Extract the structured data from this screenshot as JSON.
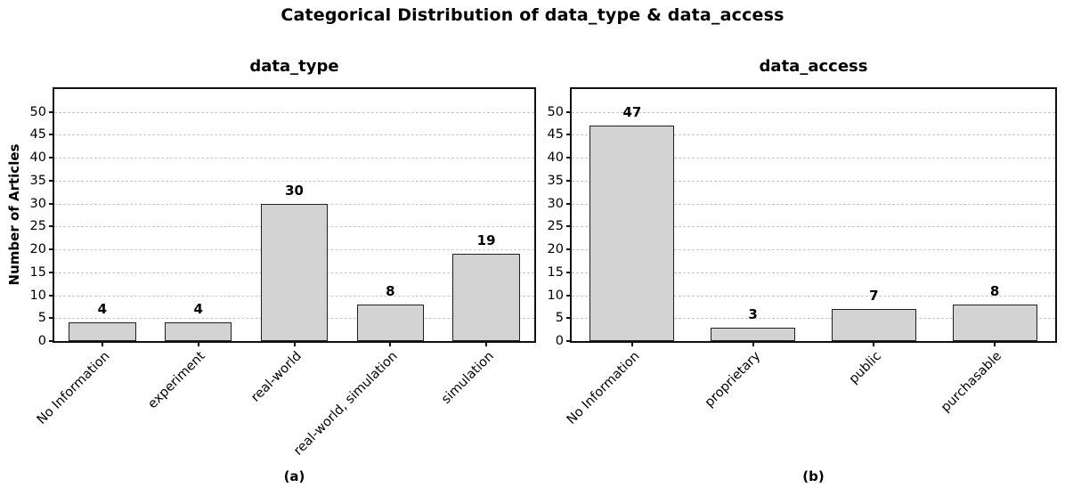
{
  "figure": {
    "title": "Categorical Distribution of data_type & data_access",
    "ylabel": "Number of Articles",
    "label_a": "(a)",
    "label_b": "(b)"
  },
  "chart_data": [
    {
      "type": "bar",
      "title": "data_type",
      "categories": [
        "No Information",
        "experiment",
        "real-world",
        "real-world, simulation",
        "simulation"
      ],
      "values": [
        4,
        4,
        30,
        8,
        19
      ],
      "xlabel": "(a)",
      "ylabel": "Number of Articles",
      "ylim": [
        0,
        55
      ],
      "yticks": [
        0,
        5,
        10,
        15,
        20,
        25,
        30,
        35,
        40,
        45,
        50
      ],
      "grid": "horizontal-dashed",
      "legend": "none",
      "bar_color": "#d3d3d3",
      "bar_edge_color": "#1f1f1f"
    },
    {
      "type": "bar",
      "title": "data_access",
      "categories": [
        "No Information",
        "proprietary",
        "public",
        "purchasable"
      ],
      "values": [
        47,
        3,
        7,
        8
      ],
      "xlabel": "(b)",
      "ylabel": "",
      "ylim": [
        0,
        55
      ],
      "yticks": [
        0,
        5,
        10,
        15,
        20,
        25,
        30,
        35,
        40,
        45,
        50
      ],
      "grid": "horizontal-dashed",
      "legend": "none",
      "bar_color": "#d3d3d3",
      "bar_edge_color": "#1f1f1f"
    }
  ]
}
